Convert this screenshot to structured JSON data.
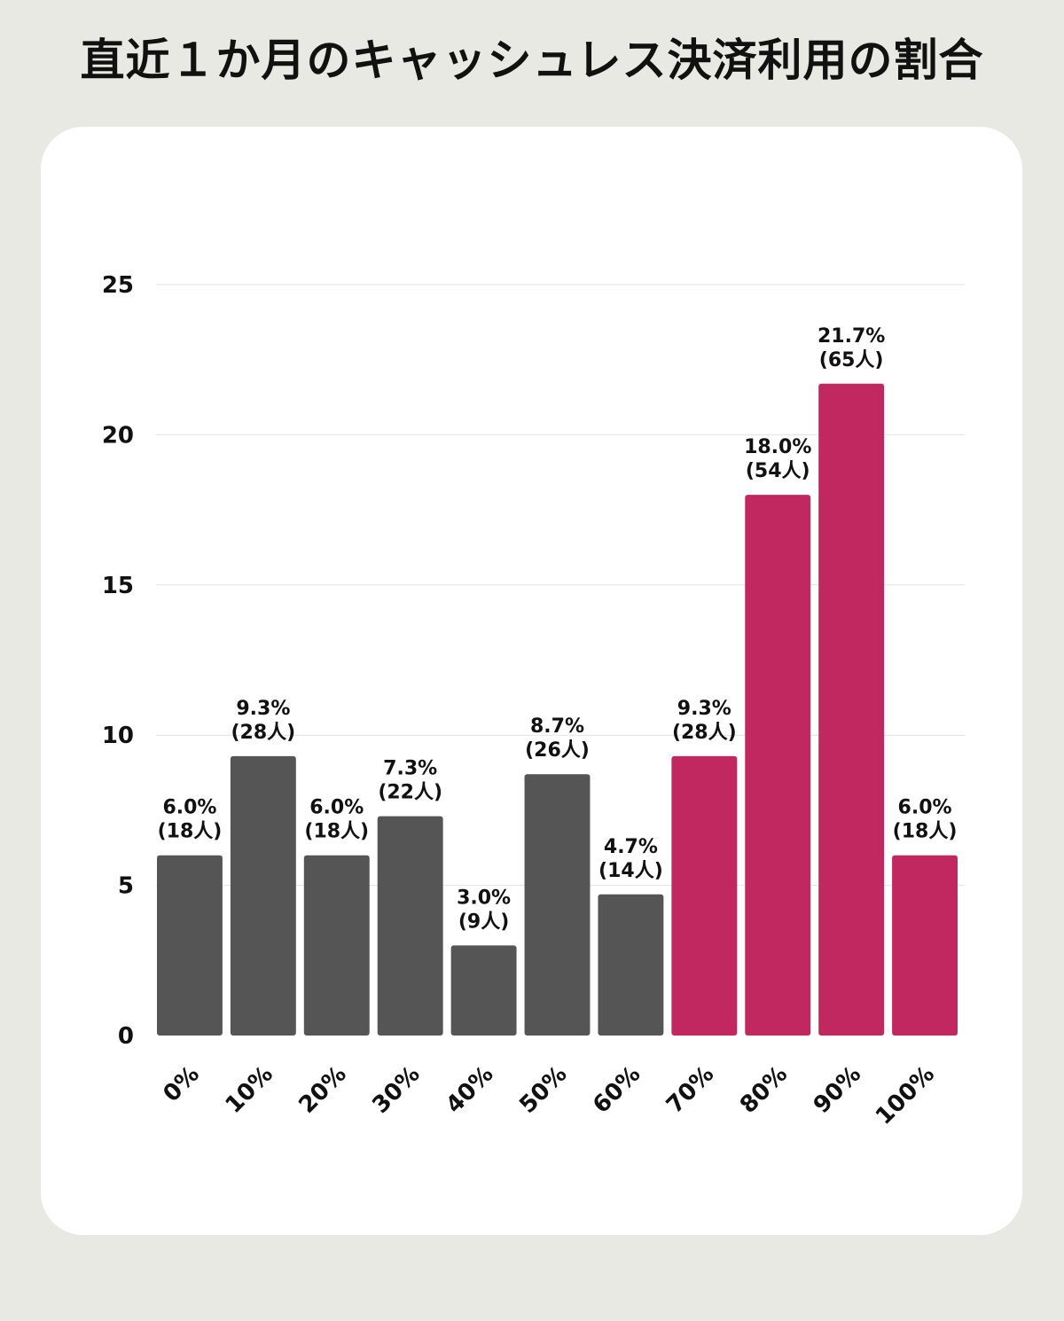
{
  "title": "直近１か月のキャッシュレス決済利用の割合",
  "colors": {
    "background": "#e9e9e4",
    "card": "#ffffff",
    "gray_bar": "#555555",
    "highlight_bar": "#c0285f",
    "gridline": "#e2e2e2",
    "text": "#111111"
  },
  "chart_data": {
    "type": "bar",
    "title": "直近１か月のキャッシュレス決済利用の割合",
    "xlabel": "",
    "ylabel": "",
    "ylim": [
      0,
      25
    ],
    "yticks": [
      0,
      5,
      10,
      15,
      20,
      25
    ],
    "grid": true,
    "categories": [
      "0%",
      "10%",
      "20%",
      "30%",
      "40%",
      "50%",
      "60%",
      "70%",
      "80%",
      "90%",
      "100%"
    ],
    "values": [
      6.0,
      9.3,
      6.0,
      7.3,
      3.0,
      8.7,
      4.7,
      9.3,
      18.0,
      21.7,
      6.0
    ],
    "percent_labels": [
      "6.0%",
      "9.3%",
      "6.0%",
      "7.3%",
      "3.0%",
      "8.7%",
      "4.7%",
      "9.3%",
      "18.0%",
      "21.7%",
      "6.0%"
    ],
    "count_labels": [
      "(18人)",
      "(28人)",
      "(18人)",
      "(22人)",
      "(9人)",
      "(26人)",
      "(14人)",
      "(28人)",
      "(54人)",
      "(65人)",
      "(18人)"
    ],
    "highlight": [
      false,
      false,
      false,
      false,
      false,
      false,
      false,
      true,
      true,
      true,
      true
    ]
  }
}
